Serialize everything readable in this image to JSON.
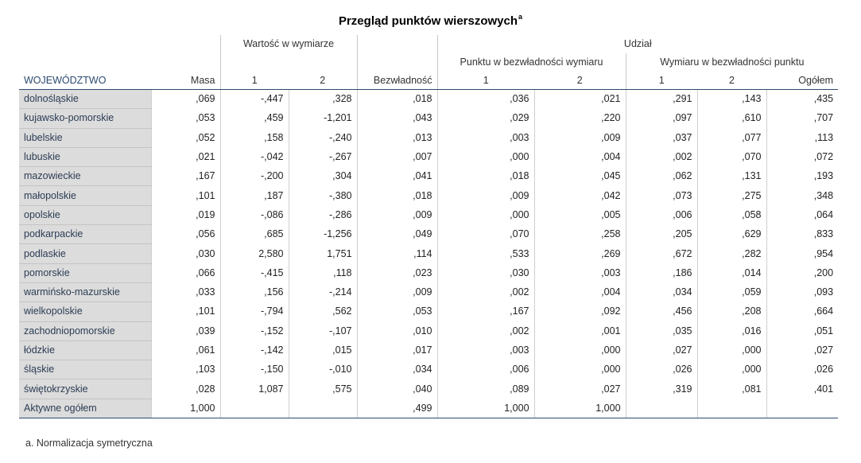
{
  "title": "Przegląd punktów wierszowych",
  "title_footnote_marker": "a",
  "header": {
    "group_value": "Wartość w wymiarze",
    "group_share": "Udział",
    "sub_point_in_inertia": "Punktu w bezwładności wymiaru",
    "sub_dim_in_inertia": "Wymiaru w bezwładności punktu",
    "col_label": "WOJEWÓDZTWO",
    "col_mass": "Masa",
    "col_dim1": "1",
    "col_dim2": "2",
    "col_inertia": "Bezwładność",
    "col_p1": "1",
    "col_p2": "2",
    "col_d1": "1",
    "col_d2": "2",
    "col_total": "Ogółem"
  },
  "rows": [
    {
      "label": "dolnośląskie",
      "cells": [
        ",069",
        "-,447",
        ",328",
        ",018",
        ",036",
        ",021",
        ",291",
        ",143",
        ",435"
      ]
    },
    {
      "label": "kujawsko-pomorskie",
      "cells": [
        ",053",
        ",459",
        "-1,201",
        ",043",
        ",029",
        ",220",
        ",097",
        ",610",
        ",707"
      ]
    },
    {
      "label": "lubelskie",
      "cells": [
        ",052",
        ",158",
        "-,240",
        ",013",
        ",003",
        ",009",
        ",037",
        ",077",
        ",113"
      ]
    },
    {
      "label": "lubuskie",
      "cells": [
        ",021",
        "-,042",
        "-,267",
        ",007",
        ",000",
        ",004",
        ",002",
        ",070",
        ",072"
      ]
    },
    {
      "label": "mazowieckie",
      "cells": [
        ",167",
        "-,200",
        ",304",
        ",041",
        ",018",
        ",045",
        ",062",
        ",131",
        ",193"
      ]
    },
    {
      "label": "małopolskie",
      "cells": [
        ",101",
        ",187",
        "-,380",
        ",018",
        ",009",
        ",042",
        ",073",
        ",275",
        ",348"
      ]
    },
    {
      "label": "opolskie",
      "cells": [
        ",019",
        "-,086",
        "-,286",
        ",009",
        ",000",
        ",005",
        ",006",
        ",058",
        ",064"
      ]
    },
    {
      "label": "podkarpackie",
      "cells": [
        ",056",
        ",685",
        "-1,256",
        ",049",
        ",070",
        ",258",
        ",205",
        ",629",
        ",833"
      ]
    },
    {
      "label": "podlaskie",
      "cells": [
        ",030",
        "2,580",
        "1,751",
        ",114",
        ",533",
        ",269",
        ",672",
        ",282",
        ",954"
      ]
    },
    {
      "label": "pomorskie",
      "cells": [
        ",066",
        "-,415",
        ",118",
        ",023",
        ",030",
        ",003",
        ",186",
        ",014",
        ",200"
      ]
    },
    {
      "label": "warmińsko-mazurskie",
      "cells": [
        ",033",
        ",156",
        "-,214",
        ",009",
        ",002",
        ",004",
        ",034",
        ",059",
        ",093"
      ]
    },
    {
      "label": "wielkopolskie",
      "cells": [
        ",101",
        "-,794",
        ",562",
        ",053",
        ",167",
        ",092",
        ",456",
        ",208",
        ",664"
      ]
    },
    {
      "label": "zachodniopomorskie",
      "cells": [
        ",039",
        "-,152",
        "-,107",
        ",010",
        ",002",
        ",001",
        ",035",
        ",016",
        ",051"
      ]
    },
    {
      "label": "łódzkie",
      "cells": [
        ",061",
        "-,142",
        ",015",
        ",017",
        ",003",
        ",000",
        ",027",
        ",000",
        ",027"
      ]
    },
    {
      "label": "śląskie",
      "cells": [
        ",103",
        "-,150",
        "-,010",
        ",034",
        ",006",
        ",000",
        ",026",
        ",000",
        ",026"
      ]
    },
    {
      "label": "świętokrzyskie",
      "cells": [
        ",028",
        "1,087",
        ",575",
        ",040",
        ",089",
        ",027",
        ",319",
        ",081",
        ",401"
      ]
    },
    {
      "label": "Aktywne ogółem",
      "cells": [
        "1,000",
        "",
        "",
        ",499",
        "1,000",
        "1,000",
        "",
        "",
        ""
      ]
    }
  ],
  "footnote": "a. Normalizacja symetryczna"
}
